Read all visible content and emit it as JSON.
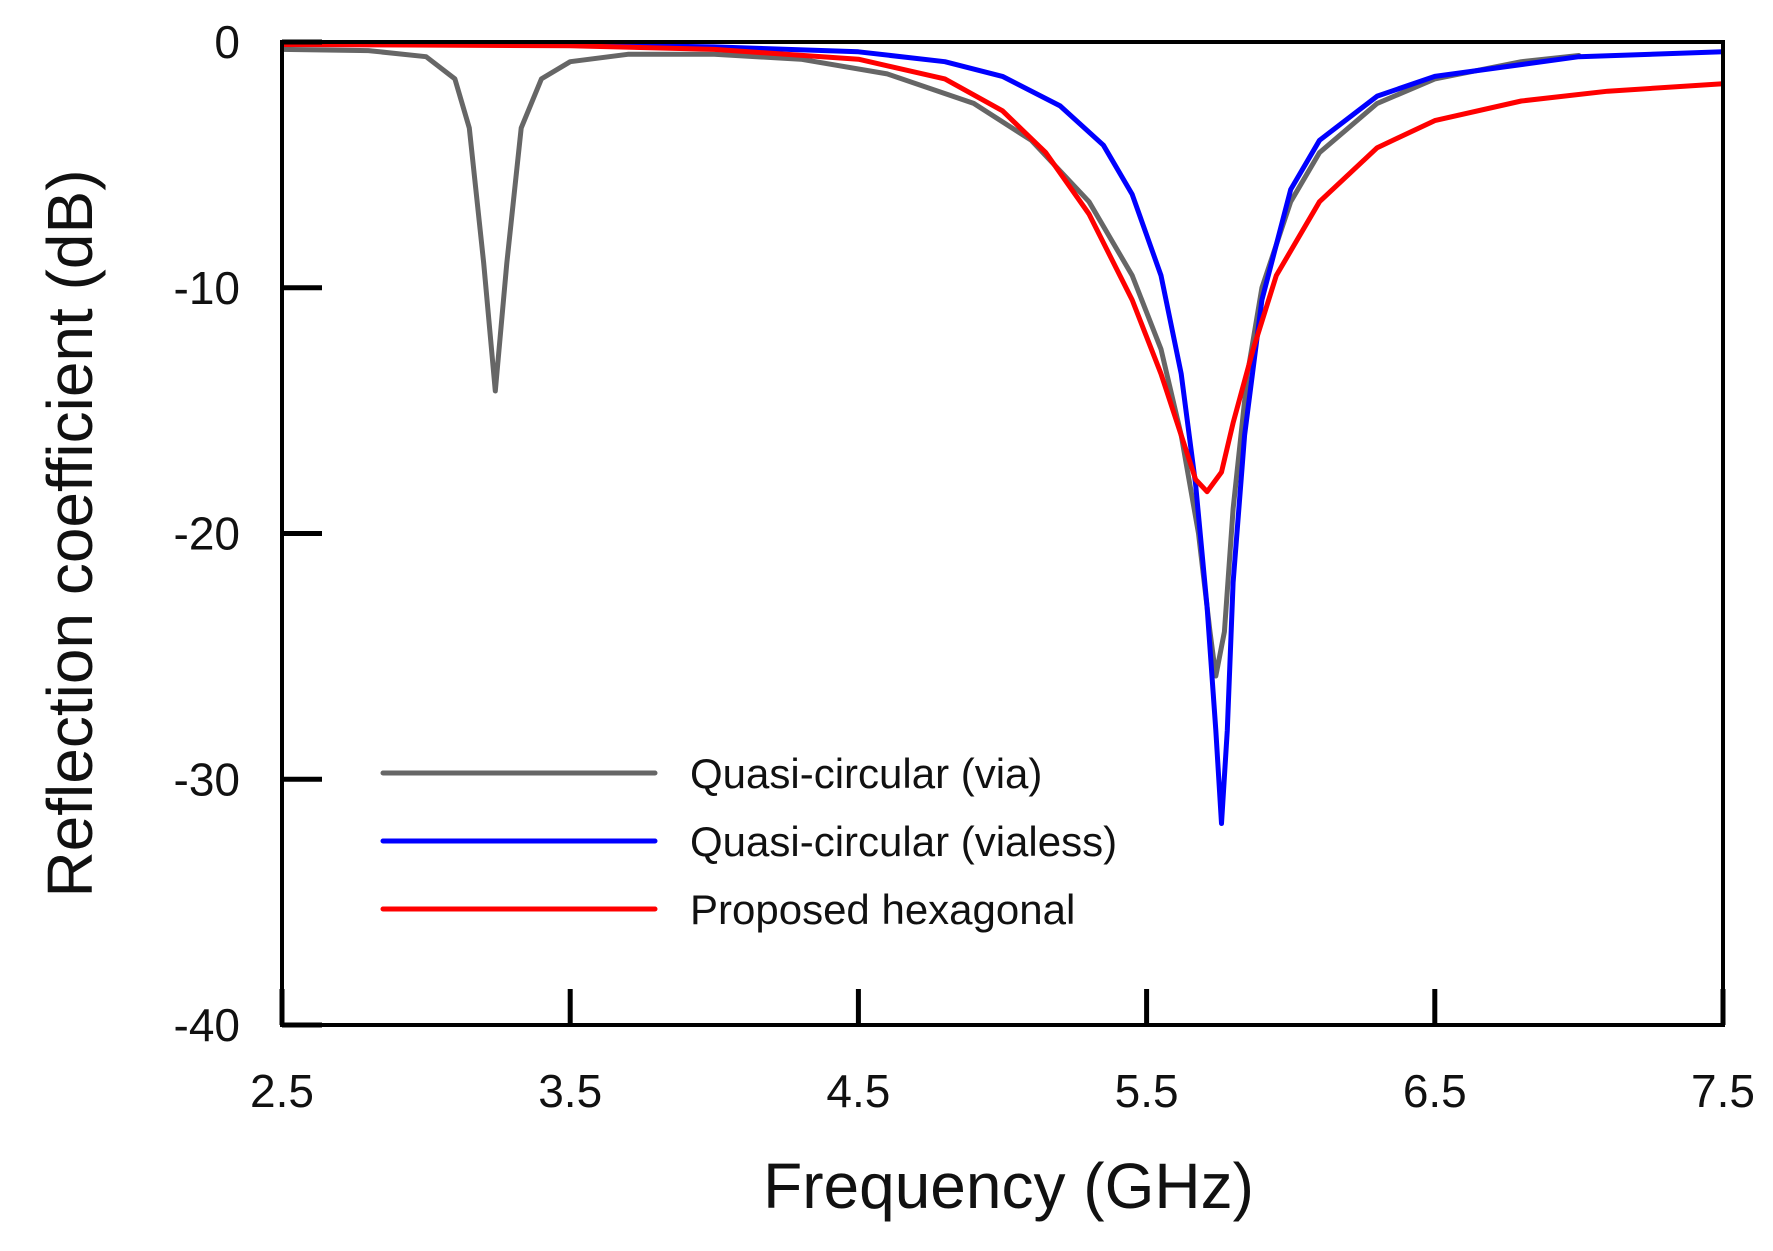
{
  "chart_data": {
    "type": "line",
    "title": "",
    "xlabel": "Frequency (GHz)",
    "ylabel": "Reflection coefficient (dB)",
    "xlim": [
      2.5,
      7.5
    ],
    "ylim": [
      -40,
      0
    ],
    "xticks": [
      2.5,
      3.5,
      4.5,
      5.5,
      6.5,
      7.5
    ],
    "xtick_labels": [
      "2.5",
      "3.5",
      "4.5",
      "5.5",
      "6.5",
      "7.5"
    ],
    "yticks": [
      0,
      -10,
      -20,
      -30,
      -40
    ],
    "ytick_labels": [
      "0",
      "-10",
      "-20",
      "-30",
      "-40"
    ],
    "grid": false,
    "legend_position": "lower-left",
    "series": [
      {
        "name": "Quasi-circular (via)",
        "color": "#666666",
        "points": [
          [
            2.5,
            -0.3
          ],
          [
            2.8,
            -0.35
          ],
          [
            3.0,
            -0.6
          ],
          [
            3.1,
            -1.5
          ],
          [
            3.15,
            -3.5
          ],
          [
            3.2,
            -9.0
          ],
          [
            3.24,
            -14.2
          ],
          [
            3.28,
            -9.0
          ],
          [
            3.33,
            -3.5
          ],
          [
            3.4,
            -1.5
          ],
          [
            3.5,
            -0.8
          ],
          [
            3.7,
            -0.5
          ],
          [
            4.0,
            -0.5
          ],
          [
            4.3,
            -0.7
          ],
          [
            4.6,
            -1.3
          ],
          [
            4.9,
            -2.5
          ],
          [
            5.1,
            -4.0
          ],
          [
            5.3,
            -6.5
          ],
          [
            5.45,
            -9.5
          ],
          [
            5.55,
            -12.5
          ],
          [
            5.62,
            -16.0
          ],
          [
            5.68,
            -20.0
          ],
          [
            5.72,
            -24.0
          ],
          [
            5.74,
            -25.8
          ],
          [
            5.77,
            -24.0
          ],
          [
            5.8,
            -19.0
          ],
          [
            5.85,
            -13.5
          ],
          [
            5.9,
            -10.0
          ],
          [
            6.0,
            -6.5
          ],
          [
            6.1,
            -4.5
          ],
          [
            6.3,
            -2.5
          ],
          [
            6.5,
            -1.5
          ],
          [
            6.8,
            -0.8
          ],
          [
            7.0,
            -0.55
          ]
        ]
      },
      {
        "name": "Quasi-circular (vialess)",
        "color": "#0000ff",
        "points": [
          [
            2.5,
            -0.1
          ],
          [
            3.5,
            -0.12
          ],
          [
            4.0,
            -0.2
          ],
          [
            4.5,
            -0.4
          ],
          [
            4.8,
            -0.8
          ],
          [
            5.0,
            -1.4
          ],
          [
            5.2,
            -2.6
          ],
          [
            5.35,
            -4.2
          ],
          [
            5.45,
            -6.2
          ],
          [
            5.55,
            -9.5
          ],
          [
            5.62,
            -13.5
          ],
          [
            5.67,
            -18.0
          ],
          [
            5.71,
            -23.0
          ],
          [
            5.74,
            -28.0
          ],
          [
            5.76,
            -31.8
          ],
          [
            5.78,
            -28.0
          ],
          [
            5.8,
            -22.0
          ],
          [
            5.84,
            -16.0
          ],
          [
            5.9,
            -10.5
          ],
          [
            6.0,
            -6.0
          ],
          [
            6.1,
            -4.0
          ],
          [
            6.3,
            -2.2
          ],
          [
            6.5,
            -1.4
          ],
          [
            7.0,
            -0.6
          ],
          [
            7.5,
            -0.4
          ]
        ]
      },
      {
        "name": "Proposed hexagonal",
        "color": "#ff0000",
        "points": [
          [
            2.5,
            -0.1
          ],
          [
            3.5,
            -0.15
          ],
          [
            4.0,
            -0.3
          ],
          [
            4.5,
            -0.7
          ],
          [
            4.8,
            -1.5
          ],
          [
            5.0,
            -2.8
          ],
          [
            5.15,
            -4.5
          ],
          [
            5.3,
            -7.0
          ],
          [
            5.45,
            -10.5
          ],
          [
            5.55,
            -13.5
          ],
          [
            5.62,
            -16.0
          ],
          [
            5.67,
            -17.8
          ],
          [
            5.71,
            -18.3
          ],
          [
            5.76,
            -17.5
          ],
          [
            5.8,
            -15.5
          ],
          [
            5.87,
            -12.5
          ],
          [
            5.95,
            -9.5
          ],
          [
            6.1,
            -6.5
          ],
          [
            6.3,
            -4.3
          ],
          [
            6.5,
            -3.2
          ],
          [
            6.8,
            -2.4
          ],
          [
            7.1,
            -2.0
          ],
          [
            7.5,
            -1.7
          ]
        ]
      }
    ]
  }
}
